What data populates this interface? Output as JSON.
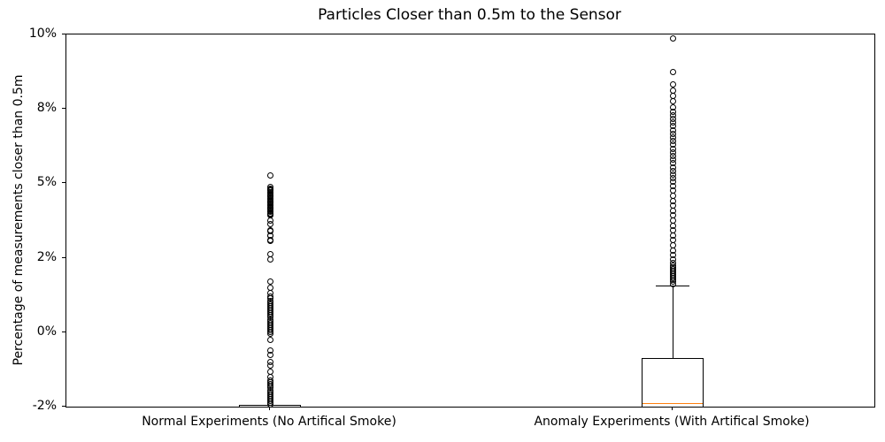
{
  "chart_data": {
    "type": "boxplot",
    "title": "Particles Closer than 0.5m to the Sensor",
    "ylabel": "Percentage of measurements closer than 0.5m",
    "grid": false,
    "legend": "none",
    "ytick_labels": [
      "10%",
      "8%",
      "5%",
      "2%",
      "0%",
      "-2%"
    ],
    "ytick_values": [
      10,
      8,
      5,
      2,
      0,
      -2
    ],
    "categories": [
      "Normal Experiments (No Artifical Smoke)",
      "Anomaly Experiments (With Artifical Smoke)"
    ],
    "series": [
      {
        "name": "Normal Experiments (No Artifical Smoke)",
        "median": -2.0,
        "q1": -2.05,
        "q3": -1.96,
        "whisker_low": -2.05,
        "whisker_high": -1.96,
        "outliers": [
          5.3,
          4.85,
          4.8,
          4.75,
          4.7,
          4.65,
          4.6,
          4.55,
          4.5,
          4.45,
          4.4,
          4.35,
          4.3,
          4.25,
          4.2,
          4.15,
          4.1,
          4.05,
          4.0,
          3.95,
          3.9,
          3.85,
          3.8,
          3.75,
          3.7,
          3.5,
          3.35,
          3.1,
          3.08,
          2.9,
          2.88,
          2.7,
          2.68,
          2.15,
          1.95,
          1.35,
          1.2,
          1.05,
          0.95,
          0.9,
          0.85,
          0.8,
          0.75,
          0.7,
          0.65,
          0.6,
          0.55,
          0.5,
          0.45,
          0.4,
          0.35,
          0.3,
          0.25,
          0.2,
          0.15,
          0.1,
          0.05,
          0.0,
          -0.05,
          -0.2,
          -0.5,
          -0.6,
          -0.8,
          -0.9,
          -1.05,
          -1.2,
          -1.3,
          -1.35,
          -1.4,
          -1.45,
          -1.5,
          -1.55,
          -1.6,
          -1.65,
          -1.7,
          -1.75,
          -1.8,
          -1.85,
          -1.9,
          -1.95
        ]
      },
      {
        "name": "Anomaly Experiments (With Artifical Smoke)",
        "median": -1.9,
        "q1": -2.05,
        "q3": -0.7,
        "whisker_low": -2.05,
        "whisker_high": 1.25,
        "outliers": [
          9.9,
          9.0,
          8.65,
          8.5,
          8.35,
          8.2,
          8.05,
          7.9,
          7.75,
          7.6,
          7.45,
          7.3,
          7.15,
          7.0,
          6.85,
          6.7,
          6.55,
          6.4,
          6.25,
          6.1,
          5.95,
          5.8,
          5.65,
          5.5,
          5.35,
          5.2,
          5.05,
          4.9,
          4.7,
          4.5,
          4.3,
          4.1,
          3.9,
          3.7,
          3.5,
          3.3,
          3.1,
          2.9,
          2.7,
          2.5,
          2.3,
          2.1,
          1.95,
          1.85,
          1.8,
          1.75,
          1.7,
          1.65,
          1.6,
          1.55,
          1.5,
          1.45,
          1.4,
          1.35,
          1.3
        ]
      }
    ],
    "colors": {
      "box": "#000000",
      "median": "#ff7f0e",
      "background": "#ffffff"
    }
  }
}
